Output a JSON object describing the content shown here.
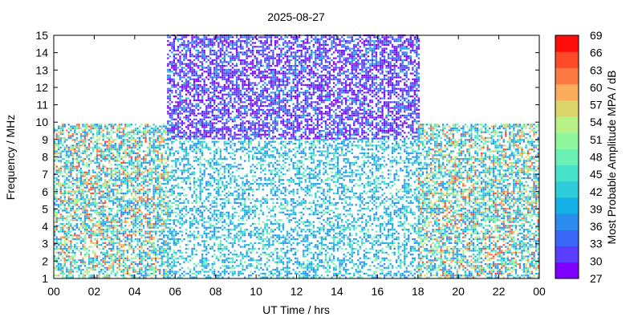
{
  "chart_data": {
    "type": "heatmap",
    "title": "2025-08-27",
    "xlabel": "UT Time / hrs",
    "ylabel": "Frequency / MHz",
    "xlim": [
      0,
      24
    ],
    "ylim": [
      1,
      15
    ],
    "x_ticks": [
      "00",
      "02",
      "04",
      "06",
      "08",
      "10",
      "12",
      "14",
      "16",
      "18",
      "20",
      "22",
      "00"
    ],
    "y_ticks": [
      "1",
      "2",
      "3",
      "4",
      "5",
      "6",
      "7",
      "8",
      "9",
      "10",
      "11",
      "12",
      "13",
      "14",
      "15"
    ],
    "colorbar": {
      "label": "Most Probable Amplitude MPA / dB",
      "range": [
        27,
        69
      ],
      "ticks": [
        "27",
        "30",
        "33",
        "36",
        "39",
        "42",
        "45",
        "48",
        "51",
        "54",
        "57",
        "60",
        "63",
        "66",
        "69"
      ],
      "colors": [
        "#7f00ff",
        "#5a3dff",
        "#3a67f7",
        "#2b8def",
        "#12b0e6",
        "#2ecbd9",
        "#45e4c8",
        "#6af2b5",
        "#8ef79c",
        "#b6f285",
        "#dcd56b",
        "#fdad5a",
        "#ff7a43",
        "#ff4a27",
        "#ff0d0b"
      ]
    },
    "regions": [
      {
        "name": "night-low-band",
        "t": [
          0,
          5.6
        ],
        "f": [
          1,
          9.9
        ],
        "mpa_range": [
          36,
          66
        ]
      },
      {
        "name": "day-high-band",
        "t": [
          5.6,
          18
        ],
        "f": [
          9,
          15
        ],
        "mpa_range": [
          27,
          40
        ]
      },
      {
        "name": "day-mid-band",
        "t": [
          5.6,
          18
        ],
        "f": [
          1,
          9
        ],
        "mpa_range": [
          36,
          50
        ]
      },
      {
        "name": "night-low-band-2",
        "t": [
          18,
          24
        ],
        "f": [
          1,
          9.9
        ],
        "mpa_range": [
          36,
          66
        ]
      }
    ]
  }
}
